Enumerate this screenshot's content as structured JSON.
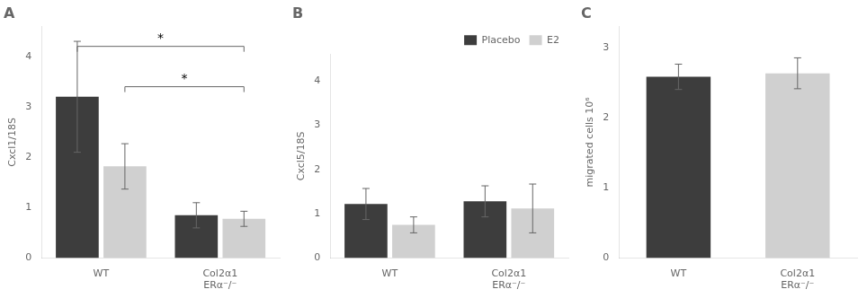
{
  "chart_data": [
    {
      "type": "bar",
      "title": "A",
      "ylabel": "Cxcl1/18S",
      "categories": [
        "WT",
        "Col2α1\nERα⁻/⁻"
      ],
      "series": [
        {
          "name": "Placebo",
          "color": "#3d3d3d",
          "values": [
            3.2,
            0.85
          ],
          "errors": [
            1.1,
            0.25
          ]
        },
        {
          "name": "E2",
          "color": "#d0d0d0",
          "values": [
            1.82,
            0.78
          ],
          "errors": [
            0.45,
            0.15
          ]
        }
      ],
      "ylim": [
        0,
        4.6
      ],
      "yticks": [
        0,
        1,
        2,
        3,
        4
      ],
      "grid": false,
      "annotations": [
        {
          "text": "*",
          "y": 4.2,
          "from": {
            "series": "Placebo",
            "category": "WT"
          },
          "to": {
            "series": "E2",
            "category": "Col2α1\nERα⁻/⁻"
          }
        },
        {
          "text": "*",
          "y": 3.4,
          "from": {
            "series": "E2",
            "category": "WT"
          },
          "to": {
            "series": "E2",
            "category": "Col2α1\nERα⁻/⁻"
          }
        }
      ]
    },
    {
      "type": "bar",
      "title": "B",
      "ylabel": "Cxcl5/18S",
      "categories": [
        "WT",
        "Col2α1\nERα⁻/⁻"
      ],
      "series": [
        {
          "name": "Placebo",
          "color": "#3d3d3d",
          "values": [
            1.22,
            1.28
          ],
          "errors": [
            0.35,
            0.35
          ]
        },
        {
          "name": "E2",
          "color": "#d0d0d0",
          "values": [
            0.75,
            1.12
          ],
          "errors": [
            0.18,
            0.55
          ]
        }
      ],
      "ylim": [
        0,
        4.6
      ],
      "yticks": [
        0,
        1,
        2,
        3,
        4
      ],
      "grid": false,
      "legend": "upper right"
    },
    {
      "type": "bar",
      "title": "C",
      "ylabel": "migrated cells 10⁶",
      "categories": [
        "WT",
        "Col2α1\nERα⁻/⁻"
      ],
      "values": [
        2.58,
        2.63
      ],
      "errors": [
        0.18,
        0.22
      ],
      "colors": [
        "#3d3d3d",
        "#d0d0d0"
      ],
      "ylim": [
        0,
        3.3
      ],
      "yticks": [
        0,
        1,
        2,
        3
      ],
      "grid": false
    }
  ]
}
